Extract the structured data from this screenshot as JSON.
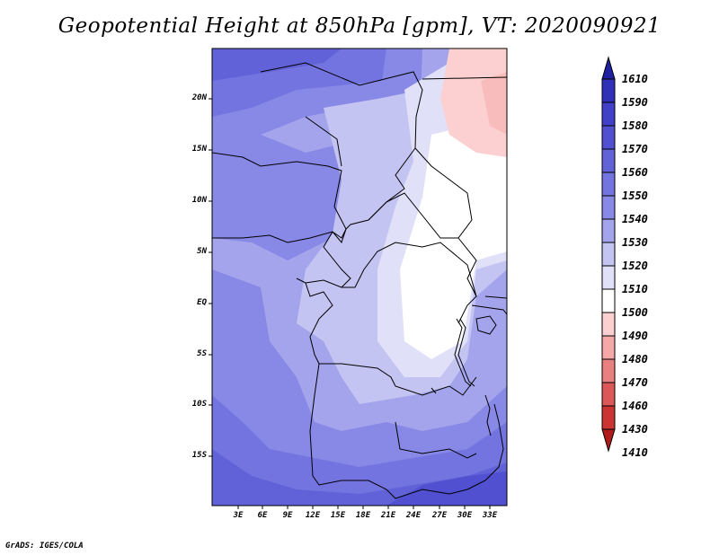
{
  "title": "Geopotential Height at 850hPa [gpm], VT: 2020090921",
  "footer": "GrADS: IGES/COLA",
  "map": {
    "lat_labels": [
      "20N",
      "15N",
      "10N",
      "5N",
      "EQ",
      "5S",
      "10S",
      "15S"
    ],
    "lon_labels": [
      "3E",
      "6E",
      "9E",
      "12E",
      "15E",
      "18E",
      "21E",
      "24E",
      "27E",
      "30E",
      "33E"
    ]
  },
  "colorbar": {
    "levels": [
      "1610",
      "1590",
      "1580",
      "1570",
      "1560",
      "1550",
      "1540",
      "1530",
      "1520",
      "1510",
      "1500",
      "1490",
      "1480",
      "1470",
      "1460",
      "1430",
      "1410"
    ],
    "colors": [
      "#2020a0",
      "#3030b8",
      "#4040c8",
      "#5050d0",
      "#6262d8",
      "#7474e0",
      "#8888e6",
      "#a4a4ec",
      "#c4c4f2",
      "#e0e0f8",
      "#ffffff",
      "#fcd0d0",
      "#f4a8a8",
      "#e88080",
      "#dc5858",
      "#cc3434",
      "#b01c1c"
    ]
  }
}
